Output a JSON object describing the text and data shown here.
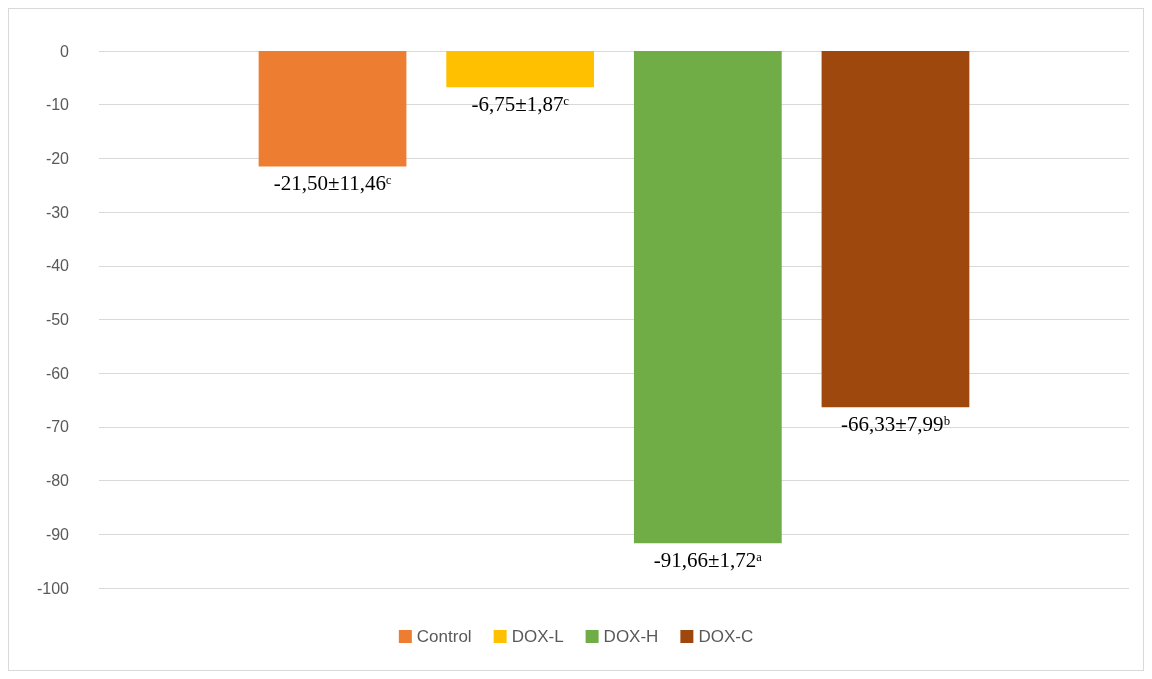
{
  "chart_data": {
    "type": "bar",
    "categories": [
      null
    ],
    "series": [
      {
        "name": "Control",
        "color": "#ed7d31",
        "values": [
          -21.5
        ],
        "value_labels": [
          "-21,50±11,46ᶜ"
        ]
      },
      {
        "name": "DOX-L",
        "color": "#ffc000",
        "values": [
          -6.75
        ],
        "value_labels": [
          "-6,75±1,87ᶜ"
        ]
      },
      {
        "name": "DOX-H",
        "color": "#70ad47",
        "values": [
          -91.66
        ],
        "value_labels": [
          "-91,66±1,72ᵃ"
        ]
      },
      {
        "name": "DOX-C",
        "color": "#9e480e",
        "values": [
          -66.33
        ],
        "value_labels": [
          "-66,33±7,99ᵇ"
        ]
      }
    ],
    "ylim": [
      -100,
      0
    ],
    "yticks": [
      0,
      -10,
      -20,
      -30,
      -40,
      -50,
      -60,
      -70,
      -80,
      -90,
      -100
    ],
    "grid": "y",
    "legend": "bottom"
  }
}
